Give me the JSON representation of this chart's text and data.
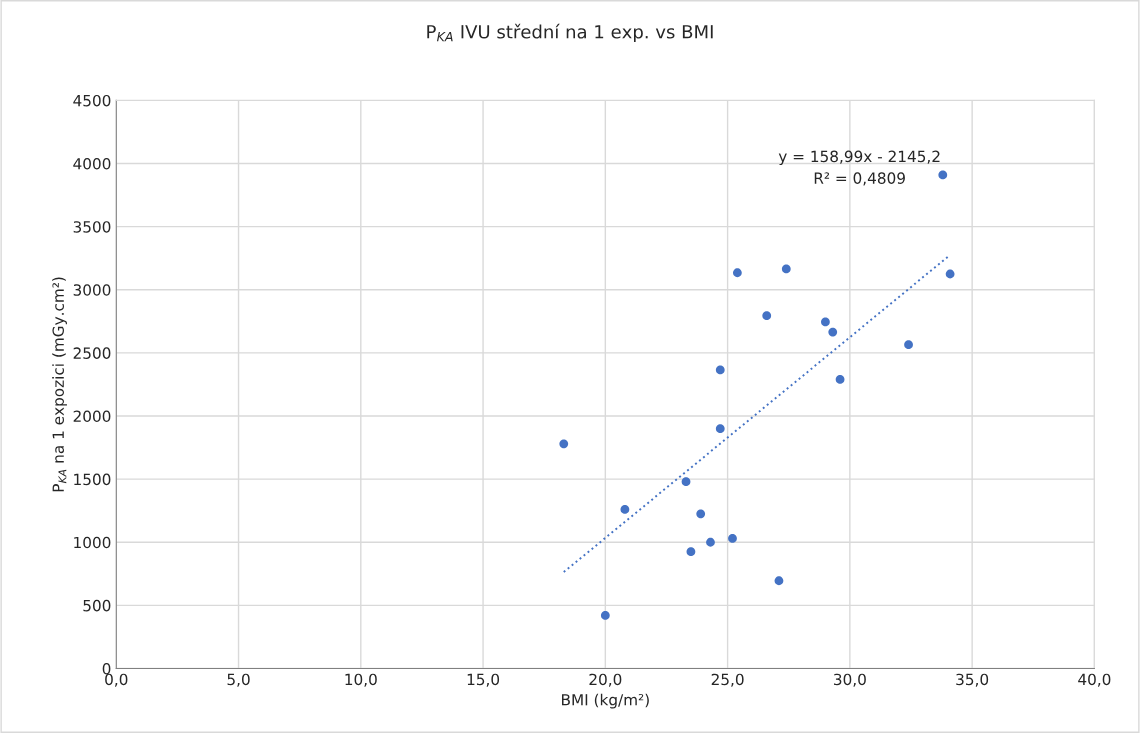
{
  "chart_data": {
    "type": "scatter",
    "title": "P$_{KA}$ IVU střední na 1 exp. vs BMI",
    "xlabel": "BMI (kg/m²)",
    "ylabel": "P$_{KA}$ na 1 expozici (mGy.cm²)",
    "annotations": [
      "y = 158,99x - 2145,2\nR² = 0,4809"
    ],
    "series": [
      {
        "color": "#4472c4",
        "marker": "circle",
        "x": [
          18.3,
          20.0,
          20.8,
          23.3,
          23.5,
          23.9,
          24.3,
          24.7,
          24.7,
          25.2,
          25.4,
          26.6,
          27.1,
          27.4,
          29.0,
          29.3,
          29.6,
          32.4,
          33.8,
          34.1
        ],
        "values": [
          1780,
          420,
          1260,
          1480,
          925,
          1225,
          1000,
          2365,
          1900,
          1030,
          3135,
          2795,
          695,
          3165,
          2745,
          2665,
          2290,
          2565,
          3910,
          3125
        ]
      },
      {
        "type": "line",
        "color": "#4472c4",
        "line_style": "dotted",
        "marker": "none",
        "x": [
          18.3,
          34.1
        ],
        "values": [
          764,
          3276
        ]
      }
    ],
    "xlim": [
      0,
      40
    ],
    "xticks": [
      {
        "value": 0,
        "label": "0,0"
      },
      {
        "value": 5,
        "label": "5,0"
      },
      {
        "value": 10,
        "label": "10,0"
      },
      {
        "value": 15,
        "label": "15,0"
      },
      {
        "value": 20,
        "label": "20,0"
      },
      {
        "value": 25,
        "label": "25,0"
      },
      {
        "value": 30,
        "label": "30,0"
      },
      {
        "value": 35,
        "label": "35,0"
      },
      {
        "value": 40,
        "label": "40,0"
      }
    ],
    "ylim": [
      0,
      4500
    ],
    "yticks": [
      0,
      500,
      1000,
      1500,
      2000,
      2500,
      3000,
      3500,
      4000,
      4500
    ],
    "grid": true,
    "legend": false
  }
}
